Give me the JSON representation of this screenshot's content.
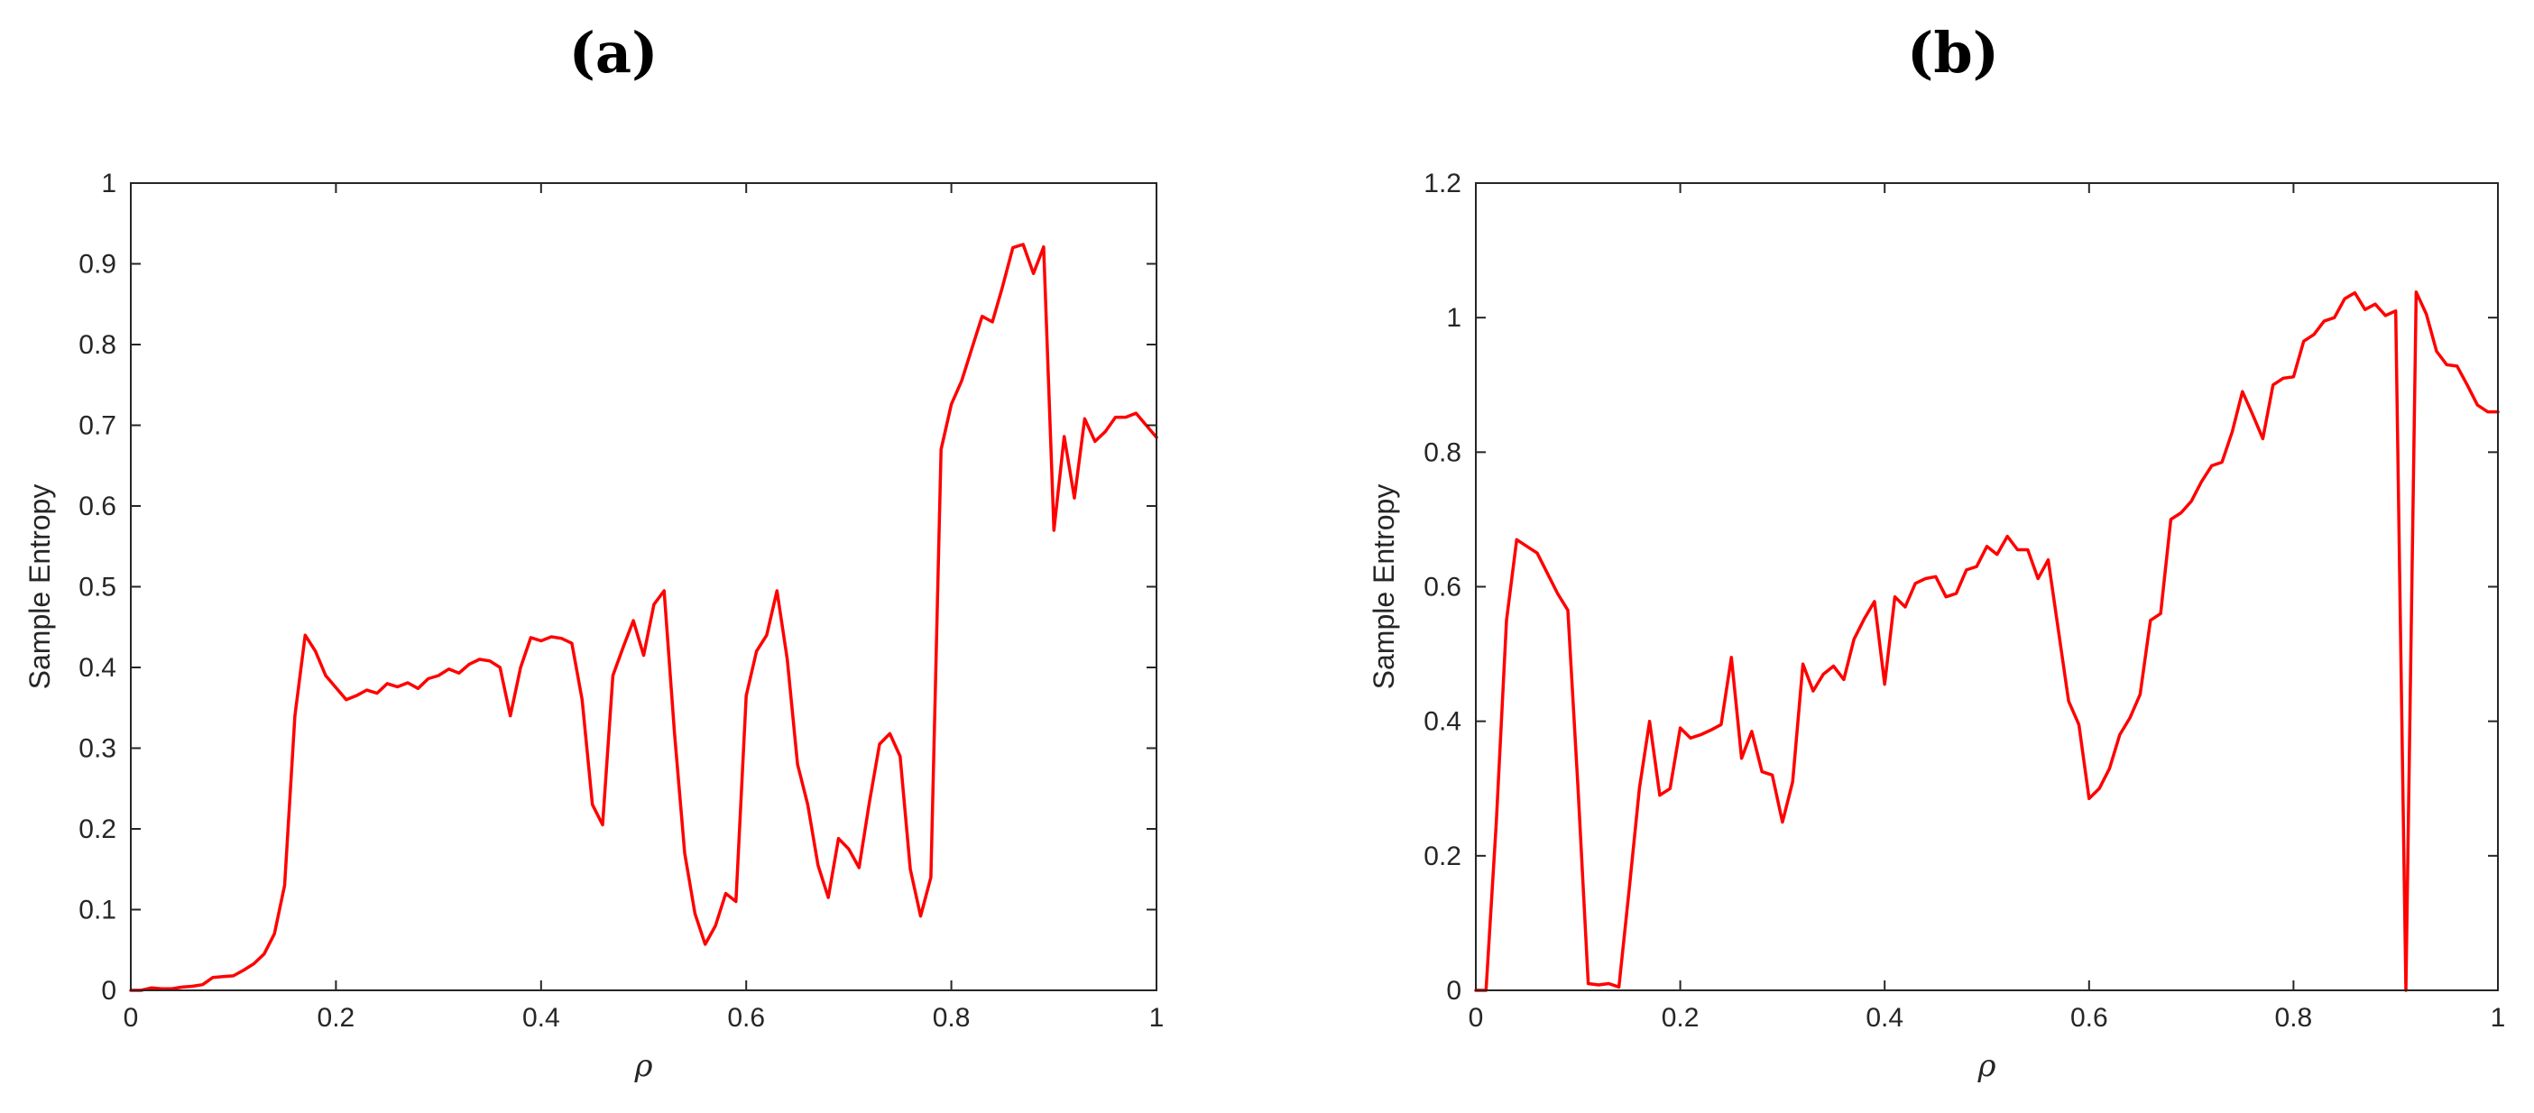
{
  "chart_data": [
    {
      "type": "line",
      "panel_label": "(a)",
      "xlabel": "ρ",
      "ylabel": "Sample Entropy",
      "xlim": [
        0,
        1
      ],
      "ylim": [
        0,
        1
      ],
      "xticks": [
        "0",
        "0.2",
        "0.4",
        "0.6",
        "0.8",
        "1"
      ],
      "xtick_values": [
        0,
        0.2,
        0.4,
        0.6,
        0.8,
        1
      ],
      "yticks": [
        "0",
        "0.1",
        "0.2",
        "0.3",
        "0.4",
        "0.5",
        "0.6",
        "0.7",
        "0.8",
        "0.9",
        "1"
      ],
      "ytick_values": [
        0,
        0.1,
        0.2,
        0.3,
        0.4,
        0.5,
        0.6,
        0.7,
        0.8,
        0.9,
        1
      ],
      "grid": false,
      "series": [
        {
          "color": "#ff0000",
          "x": [
            0,
            0.01,
            0.02,
            0.03,
            0.04,
            0.05,
            0.06,
            0.07,
            0.08,
            0.09,
            0.1,
            0.11,
            0.12,
            0.13,
            0.14,
            0.15,
            0.16,
            0.17,
            0.18,
            0.19,
            0.2,
            0.21,
            0.22,
            0.23,
            0.24,
            0.25,
            0.26,
            0.27,
            0.28,
            0.29,
            0.3,
            0.31,
            0.32,
            0.33,
            0.34,
            0.35,
            0.36,
            0.37,
            0.38,
            0.39,
            0.4,
            0.41,
            0.42,
            0.43,
            0.44,
            0.45,
            0.46,
            0.47,
            0.48,
            0.49,
            0.5,
            0.51,
            0.52,
            0.53,
            0.54,
            0.55,
            0.56,
            0.57,
            0.58,
            0.59,
            0.6,
            0.61,
            0.62,
            0.63,
            0.64,
            0.65,
            0.66,
            0.67,
            0.68,
            0.69,
            0.7,
            0.71,
            0.72,
            0.73,
            0.74,
            0.75,
            0.76,
            0.77,
            0.78,
            0.79,
            0.8,
            0.81,
            0.82,
            0.83,
            0.84,
            0.85,
            0.86,
            0.87,
            0.88,
            0.89,
            0.9,
            0.91,
            0.92,
            0.93,
            0.94,
            0.95,
            0.96,
            0.97,
            0.98,
            0.99,
            1.0
          ],
          "y": [
            0,
            0,
            0.003,
            0.002,
            0.002,
            0.004,
            0.005,
            0.007,
            0.016,
            0.017,
            0.018,
            0.025,
            0.033,
            0.045,
            0.07,
            0.13,
            0.34,
            0.44,
            0.42,
            0.39,
            0.375,
            0.36,
            0.365,
            0.372,
            0.368,
            0.38,
            0.376,
            0.381,
            0.374,
            0.386,
            0.39,
            0.398,
            0.393,
            0.404,
            0.41,
            0.408,
            0.4,
            0.34,
            0.4,
            0.437,
            0.433,
            0.438,
            0.436,
            0.43,
            0.36,
            0.23,
            0.205,
            0.39,
            0.425,
            0.458,
            0.415,
            0.478,
            0.495,
            0.32,
            0.17,
            0.095,
            0.057,
            0.08,
            0.12,
            0.11,
            0.365,
            0.42,
            0.44,
            0.495,
            0.41,
            0.28,
            0.23,
            0.155,
            0.115,
            0.188,
            0.175,
            0.152,
            0.232,
            0.305,
            0.318,
            0.29,
            0.15,
            0.092,
            0.14,
            0.67,
            0.726,
            0.755,
            0.795,
            0.835,
            0.828,
            0.872,
            0.92,
            0.924,
            0.888,
            0.921,
            0.57,
            0.686,
            0.61,
            0.708,
            0.68,
            0.692,
            0.71,
            0.71,
            0.715,
            0.7,
            0.685
          ]
        }
      ]
    },
    {
      "type": "line",
      "panel_label": "(b)",
      "xlabel": "ρ",
      "ylabel": "Sample Entropy",
      "xlim": [
        0,
        1
      ],
      "ylim": [
        0,
        1.2
      ],
      "xticks": [
        "0",
        "0.2",
        "0.4",
        "0.6",
        "0.8",
        "1"
      ],
      "xtick_values": [
        0,
        0.2,
        0.4,
        0.6,
        0.8,
        1
      ],
      "yticks": [
        "0",
        "0.2",
        "0.4",
        "0.6",
        "0.8",
        "1",
        "1.2"
      ],
      "ytick_values": [
        0,
        0.2,
        0.4,
        0.6,
        0.8,
        1,
        1.2
      ],
      "grid": false,
      "series": [
        {
          "color": "#ff0000",
          "x": [
            0,
            0.01,
            0.02,
            0.03,
            0.04,
            0.05,
            0.06,
            0.07,
            0.08,
            0.09,
            0.1,
            0.11,
            0.12,
            0.13,
            0.14,
            0.15,
            0.16,
            0.17,
            0.18,
            0.19,
            0.2,
            0.21,
            0.22,
            0.23,
            0.24,
            0.25,
            0.26,
            0.27,
            0.28,
            0.29,
            0.3,
            0.31,
            0.32,
            0.33,
            0.34,
            0.35,
            0.36,
            0.37,
            0.38,
            0.39,
            0.4,
            0.41,
            0.42,
            0.43,
            0.44,
            0.45,
            0.46,
            0.47,
            0.48,
            0.49,
            0.5,
            0.51,
            0.52,
            0.53,
            0.54,
            0.55,
            0.56,
            0.57,
            0.58,
            0.59,
            0.6,
            0.61,
            0.62,
            0.63,
            0.64,
            0.65,
            0.66,
            0.67,
            0.68,
            0.69,
            0.7,
            0.71,
            0.72,
            0.73,
            0.74,
            0.75,
            0.76,
            0.77,
            0.78,
            0.79,
            0.8,
            0.81,
            0.82,
            0.83,
            0.84,
            0.85,
            0.86,
            0.87,
            0.88,
            0.89,
            0.9,
            0.91,
            0.92,
            0.93,
            0.94,
            0.95,
            0.96,
            0.97,
            0.98,
            0.99,
            1.0
          ],
          "y": [
            0,
            0,
            0.25,
            0.55,
            0.67,
            0.66,
            0.65,
            0.62,
            0.59,
            0.565,
            0.3,
            0.01,
            0.008,
            0.01,
            0.005,
            0.15,
            0.3,
            0.4,
            0.29,
            0.3,
            0.39,
            0.375,
            0.38,
            0.387,
            0.395,
            0.495,
            0.345,
            0.385,
            0.325,
            0.32,
            0.25,
            0.31,
            0.485,
            0.445,
            0.47,
            0.482,
            0.462,
            0.522,
            0.552,
            0.578,
            0.455,
            0.585,
            0.57,
            0.605,
            0.612,
            0.615,
            0.585,
            0.59,
            0.625,
            0.63,
            0.66,
            0.648,
            0.675,
            0.655,
            0.655,
            0.612,
            0.64,
            0.535,
            0.43,
            0.395,
            0.285,
            0.3,
            0.33,
            0.38,
            0.405,
            0.44,
            0.55,
            0.56,
            0.7,
            0.71,
            0.727,
            0.756,
            0.78,
            0.785,
            0.83,
            0.89,
            0.856,
            0.82,
            0.9,
            0.91,
            0.912,
            0.965,
            0.975,
            0.995,
            1.0,
            1.028,
            1.037,
            1.012,
            1.02,
            1.003,
            1.01,
            0.0,
            1.038,
            1.005,
            0.95,
            0.93,
            0.928,
            0.9,
            0.87,
            0.86,
            0.86
          ]
        }
      ]
    }
  ]
}
